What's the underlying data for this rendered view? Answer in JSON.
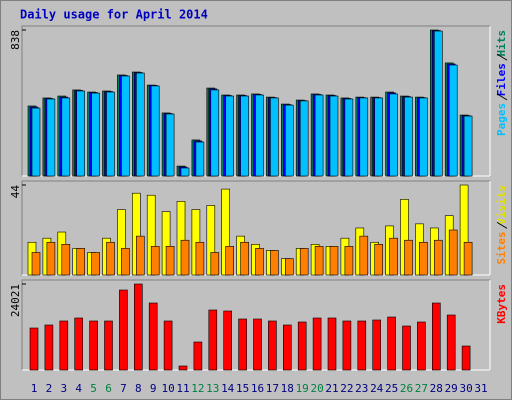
{
  "chart_data": [
    {
      "type": "bar",
      "title": "Daily usage for April 2014",
      "series": [
        {
          "name": "Hits",
          "color": "#00805c",
          "values": [
            402,
            448,
            459,
            494,
            482,
            488,
            580,
            597,
            522,
            362,
            57,
            207,
            505,
            465,
            465,
            471,
            453,
            413,
            436,
            471,
            465,
            448,
            453,
            453,
            482,
            459,
            453,
            838,
            649,
            350,
            0
          ]
        },
        {
          "name": "Files",
          "color": "#0000ff",
          "values": [
            396,
            445,
            453,
            491,
            479,
            485,
            577,
            594,
            520,
            359,
            52,
            201,
            500,
            462,
            462,
            468,
            450,
            410,
            433,
            468,
            462,
            445,
            450,
            450,
            477,
            456,
            450,
            835,
            643,
            347,
            0
          ]
        },
        {
          "name": "Pages",
          "color": "#00c0ff",
          "values": [
            390,
            442,
            448,
            488,
            476,
            482,
            574,
            591,
            517,
            356,
            46,
            195,
            494,
            459,
            459,
            465,
            448,
            407,
            431,
            465,
            459,
            442,
            448,
            448,
            471,
            453,
            448,
            832,
            637,
            344,
            0
          ]
        }
      ],
      "ylim": [
        0,
        838
      ],
      "yticks": [
        838
      ]
    },
    {
      "type": "bar",
      "series": [
        {
          "name": "Visits",
          "color": "#ffff00",
          "values": [
            16,
            18,
            21,
            13,
            11,
            18,
            32,
            40,
            39,
            31,
            36,
            32,
            34,
            42,
            19,
            15,
            12,
            8,
            13,
            15,
            14,
            18,
            23,
            16,
            24,
            37,
            25,
            23,
            29,
            44,
            0
          ]
        },
        {
          "name": "Sites",
          "color": "#ff8000",
          "values": [
            11,
            16,
            15,
            13,
            11,
            16,
            13,
            19,
            14,
            14,
            17,
            16,
            11,
            14,
            16,
            13,
            12,
            8,
            13,
            14,
            14,
            14,
            19,
            15,
            18,
            17,
            16,
            17,
            22,
            16,
            0
          ]
        }
      ],
      "ylim": [
        0,
        44
      ],
      "yticks": [
        44
      ]
    },
    {
      "type": "bar",
      "categories": [
        "1",
        "2",
        "3",
        "4",
        "5",
        "6",
        "7",
        "8",
        "9",
        "10",
        "11",
        "12",
        "13",
        "14",
        "15",
        "16",
        "17",
        "18",
        "19",
        "20",
        "21",
        "22",
        "23",
        "24",
        "25",
        "26",
        "27",
        "28",
        "29",
        "30",
        "31"
      ],
      "category_colors": [
        "#000080",
        "#000080",
        "#000080",
        "#000080",
        "#008040",
        "#008040",
        "#000080",
        "#000080",
        "#000080",
        "#000080",
        "#000080",
        "#008040",
        "#008040",
        "#000080",
        "#000080",
        "#000080",
        "#000080",
        "#000080",
        "#008040",
        "#008040",
        "#000080",
        "#000080",
        "#000080",
        "#000080",
        "#000080",
        "#008040",
        "#008040",
        "#000080",
        "#000080",
        "#000080",
        "#000080"
      ],
      "series": [
        {
          "name": "KBytes",
          "color": "#ff0000",
          "values": [
            11730,
            12570,
            13690,
            14525,
            13690,
            13690,
            22340,
            24021,
            18710,
            13690,
            1120,
            7820,
            16760,
            16480,
            14245,
            14245,
            13690,
            12570,
            13410,
            14525,
            14525,
            13690,
            13690,
            13965,
            14800,
            12290,
            13410,
            18710,
            15360,
            6700,
            0
          ]
        }
      ],
      "ylim": [
        0,
        24021
      ],
      "yticks": [
        24021
      ]
    }
  ]
}
